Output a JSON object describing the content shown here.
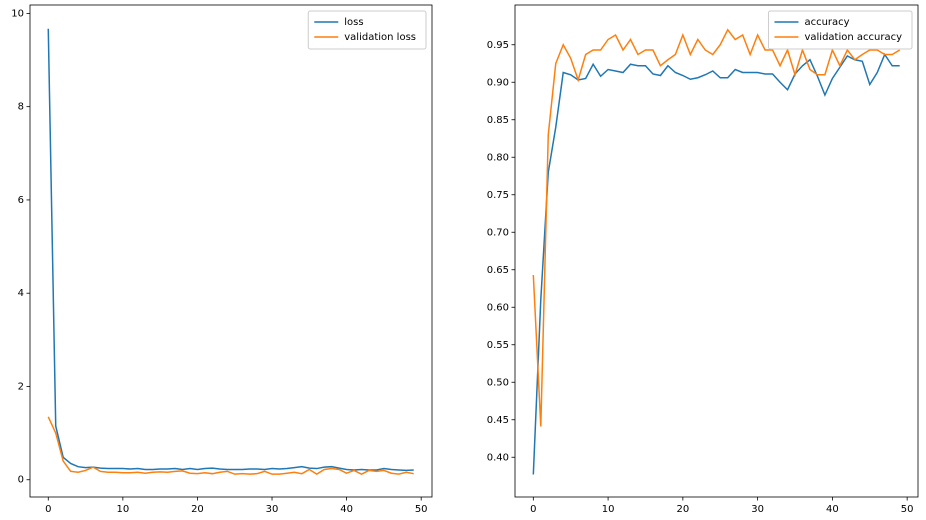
{
  "chart_data": [
    {
      "type": "line",
      "x": [
        0,
        1,
        2,
        3,
        4,
        5,
        6,
        7,
        8,
        9,
        10,
        11,
        12,
        13,
        14,
        15,
        16,
        17,
        18,
        19,
        20,
        21,
        22,
        23,
        24,
        25,
        26,
        27,
        28,
        29,
        30,
        31,
        32,
        33,
        34,
        35,
        36,
        37,
        38,
        39,
        40,
        41,
        42,
        43,
        44,
        45,
        46,
        47,
        48,
        49
      ],
      "series": [
        {
          "name": "loss",
          "color": "#1f77b4",
          "values": [
            9.67,
            1.15,
            0.48,
            0.35,
            0.28,
            0.26,
            0.27,
            0.25,
            0.24,
            0.24,
            0.24,
            0.23,
            0.24,
            0.22,
            0.22,
            0.23,
            0.23,
            0.24,
            0.22,
            0.24,
            0.22,
            0.24,
            0.25,
            0.23,
            0.22,
            0.22,
            0.22,
            0.23,
            0.23,
            0.22,
            0.24,
            0.23,
            0.24,
            0.26,
            0.28,
            0.25,
            0.24,
            0.27,
            0.28,
            0.25,
            0.22,
            0.21,
            0.22,
            0.21,
            0.21,
            0.24,
            0.22,
            0.21,
            0.2,
            0.21
          ]
        },
        {
          "name": "validation loss",
          "color": "#ff7f0e",
          "values": [
            1.35,
            1.0,
            0.4,
            0.18,
            0.16,
            0.2,
            0.27,
            0.18,
            0.16,
            0.16,
            0.15,
            0.15,
            0.16,
            0.14,
            0.16,
            0.17,
            0.16,
            0.18,
            0.19,
            0.14,
            0.13,
            0.15,
            0.13,
            0.16,
            0.18,
            0.12,
            0.13,
            0.12,
            0.13,
            0.18,
            0.12,
            0.12,
            0.14,
            0.16,
            0.13,
            0.22,
            0.12,
            0.22,
            0.24,
            0.22,
            0.14,
            0.2,
            0.12,
            0.2,
            0.18,
            0.2,
            0.14,
            0.12,
            0.16,
            0.13
          ]
        }
      ],
      "xlim": [
        -2.45,
        51.45
      ],
      "ylim": [
        -0.37,
        10.18
      ],
      "xticks": [
        0,
        10,
        20,
        30,
        40,
        50
      ],
      "yticks": [
        0,
        2,
        4,
        6,
        8,
        10
      ],
      "legend": "upper right"
    },
    {
      "type": "line",
      "x": [
        0,
        1,
        2,
        3,
        4,
        5,
        6,
        7,
        8,
        9,
        10,
        11,
        12,
        13,
        14,
        15,
        16,
        17,
        18,
        19,
        20,
        21,
        22,
        23,
        24,
        25,
        26,
        27,
        28,
        29,
        30,
        31,
        32,
        33,
        34,
        35,
        36,
        37,
        38,
        39,
        40,
        41,
        42,
        43,
        44,
        45,
        46,
        47,
        48,
        49
      ],
      "series": [
        {
          "name": "accuracy",
          "color": "#1f77b4",
          "values": [
            0.377,
            0.61,
            0.78,
            0.84,
            0.913,
            0.91,
            0.903,
            0.905,
            0.924,
            0.908,
            0.917,
            0.915,
            0.913,
            0.924,
            0.922,
            0.922,
            0.911,
            0.909,
            0.922,
            0.913,
            0.909,
            0.904,
            0.906,
            0.91,
            0.915,
            0.906,
            0.906,
            0.917,
            0.913,
            0.913,
            0.913,
            0.911,
            0.911,
            0.9,
            0.89,
            0.911,
            0.922,
            0.93,
            0.908,
            0.883,
            0.905,
            0.92,
            0.935,
            0.93,
            0.928,
            0.897,
            0.913,
            0.937,
            0.922,
            0.922
          ]
        },
        {
          "name": "validation accuracy",
          "color": "#ff7f0e",
          "values": [
            0.643,
            0.441,
            0.83,
            0.925,
            0.95,
            0.932,
            0.903,
            0.937,
            0.943,
            0.943,
            0.957,
            0.963,
            0.943,
            0.957,
            0.937,
            0.943,
            0.943,
            0.922,
            0.93,
            0.937,
            0.963,
            0.937,
            0.957,
            0.943,
            0.937,
            0.95,
            0.97,
            0.957,
            0.963,
            0.937,
            0.963,
            0.943,
            0.943,
            0.922,
            0.943,
            0.91,
            0.943,
            0.917,
            0.91,
            0.91,
            0.943,
            0.922,
            0.943,
            0.93,
            0.937,
            0.943,
            0.943,
            0.937,
            0.937,
            0.943
          ]
        }
      ],
      "xlim": [
        -2.45,
        51.45
      ],
      "ylim": [
        0.347,
        1.003
      ],
      "xticks": [
        0,
        10,
        20,
        30,
        40,
        50
      ],
      "yticks": [
        {
          "value": 0.4,
          "label": "0.40"
        },
        0.45,
        {
          "value": 0.5,
          "label": "0.50"
        },
        0.55,
        {
          "value": 0.6,
          "label": "0.60"
        },
        0.65,
        {
          "value": 0.7,
          "label": "0.70"
        },
        0.75,
        {
          "value": 0.8,
          "label": "0.80"
        },
        0.85,
        {
          "value": 0.9,
          "label": "0.90"
        },
        0.95
      ],
      "legend": "upper right"
    }
  ]
}
